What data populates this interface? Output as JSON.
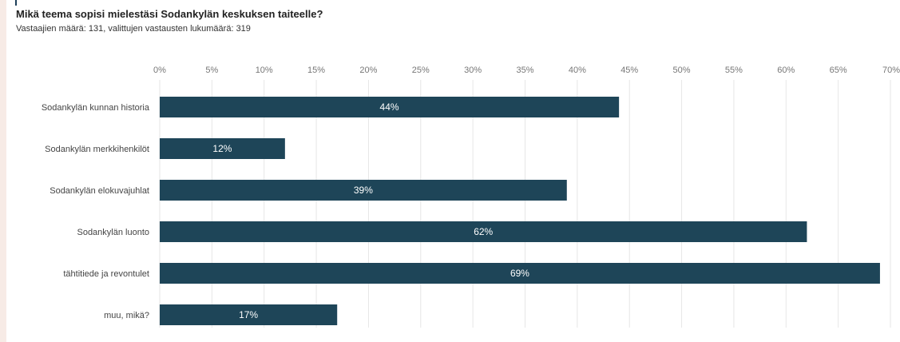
{
  "chart_data": {
    "type": "bar",
    "orientation": "horizontal",
    "title": "Mikä teema sopisi mielestäsi Sodankylän keskuksen taiteelle?",
    "subtitle": "Vastaajien määrä: 131, valittujen vastausten lukumäärä: 319",
    "categories": [
      "Sodankylän kunnan historia",
      "Sodankylän merkkihenkilöt",
      "Sodankylän elokuvajuhlat",
      "Sodankylän luonto",
      "tähtitiede ja revontulet",
      "muu, mikä?"
    ],
    "values": [
      44,
      12,
      39,
      62,
      69,
      17
    ],
    "value_labels": [
      "44%",
      "12%",
      "39%",
      "62%",
      "69%",
      "17%"
    ],
    "xlim": [
      0,
      70
    ],
    "ticks": [
      0,
      5,
      10,
      15,
      20,
      25,
      30,
      35,
      40,
      45,
      50,
      55,
      60,
      65,
      70
    ],
    "tick_labels": [
      "0%",
      "5%",
      "10%",
      "15%",
      "20%",
      "25%",
      "30%",
      "35%",
      "40%",
      "45%",
      "50%",
      "55%",
      "60%",
      "65%",
      "70%"
    ],
    "tick_position": "top",
    "grid": true,
    "bar_color": "#1e4558",
    "grid_color": "#e6e6e6"
  }
}
